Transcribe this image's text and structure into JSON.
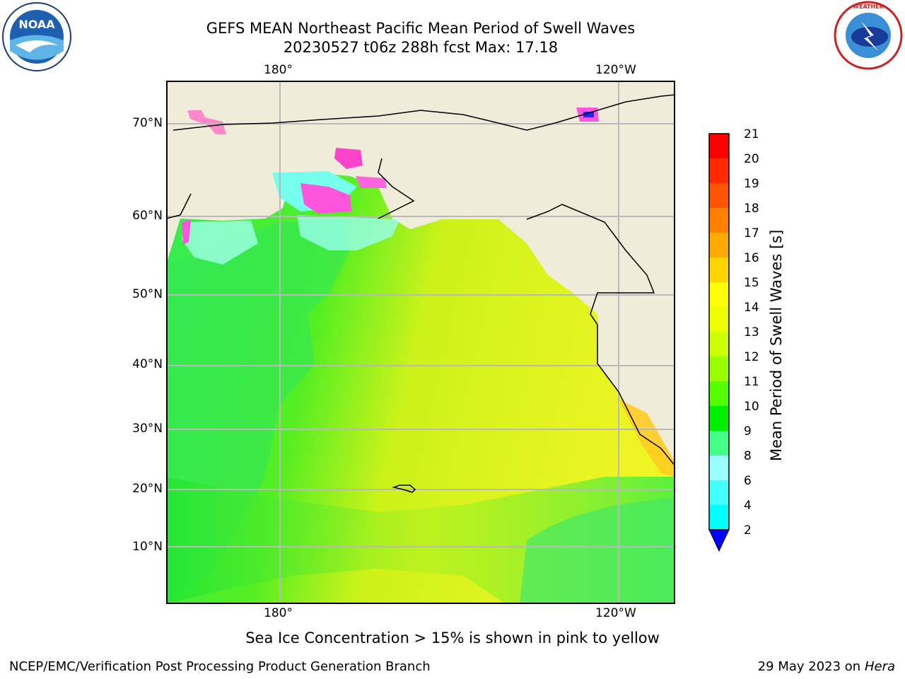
{
  "header": {
    "title_line1": "GEFS MEAN Northeast Pacific Mean Period of Swell Waves",
    "title_line2": "20230527 t06z 288h fcst   Max: 17.18",
    "left_logo_text": "NOAA",
    "right_logo_text": "NATIONAL WEATHER SERVICE"
  },
  "map": {
    "top_lon_labels": [
      "180°",
      "120°W"
    ],
    "bottom_lon_labels": [
      "180°",
      "120°W"
    ],
    "lat_labels": [
      "70°N",
      "60°N",
      "50°N",
      "40°N",
      "30°N",
      "20°N",
      "10°N"
    ],
    "colors": {
      "land": "#efedda",
      "ocean_green": "#33ee33",
      "ocean_yellow": "#eef522",
      "sea_ice_pink": "#ff44dd",
      "grid": "#bbbbbb"
    }
  },
  "colorbar": {
    "title": "Mean Period of Swell Waves [s]",
    "tick_labels": [
      "21",
      "20",
      "19",
      "18",
      "17",
      "16",
      "15",
      "14",
      "13",
      "12",
      "11",
      "10",
      "9",
      "8",
      "6",
      "4",
      "2"
    ],
    "colors": [
      "#ff0000",
      "#ff2a00",
      "#ff5500",
      "#ff7f00",
      "#ffaa00",
      "#ffd400",
      "#ffff00",
      "#eeff00",
      "#ccff00",
      "#99ff00",
      "#55ff00",
      "#00ee00",
      "#44ff88",
      "#99ffff",
      "#44ffff",
      "#00ffff",
      "#00ddff",
      "#0077ff",
      "#0000ff"
    ]
  },
  "footer": {
    "note": "Sea Ice Concentration > 15% is shown in pink to yellow",
    "credit_left": "NCEP/EMC/Verification Post Processing Product Generation Branch",
    "credit_right_date": "29 May 2023 on",
    "credit_right_host": "Hera"
  }
}
